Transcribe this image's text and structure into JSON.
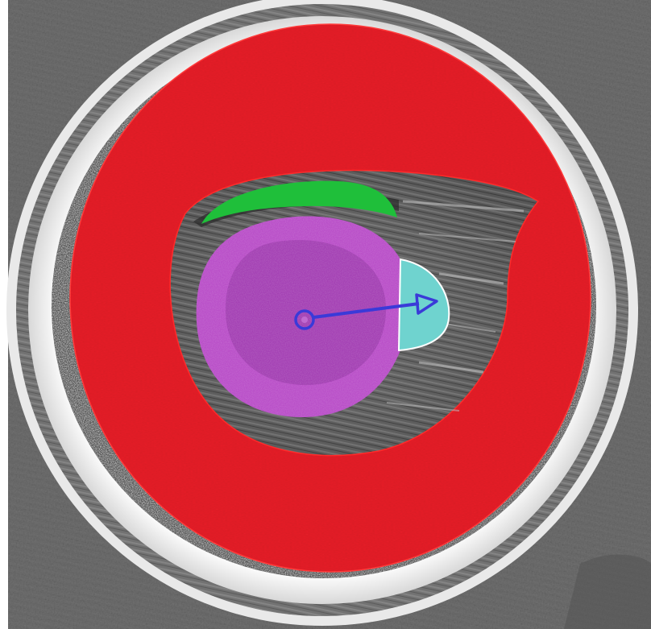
{
  "image": {
    "description_visible_text": "",
    "colors": {
      "background": "#ffffff",
      "surface_dark": "#5a5a5a",
      "surface_mid": "#9a9a9a",
      "white_ring": "#f4f4f4",
      "red_region": "#e8202a",
      "red_outline": "#ff2a2a",
      "green_region": "#1fbf3a",
      "magenta_region": "#b94fc8",
      "magenta_inner": "#9e3cae",
      "cyan_region": "#6fd3cf",
      "arrow": "#3a3ad8",
      "cavity": "#4a4a4a"
    },
    "regions": [
      {
        "name": "red-annulus-region",
        "label": ""
      },
      {
        "name": "green-crescent-region",
        "label": ""
      },
      {
        "name": "magenta-disc-region",
        "label": ""
      },
      {
        "name": "cyan-cap-region",
        "label": ""
      }
    ],
    "marker": {
      "type": "arrow-with-circle",
      "icon": "direction-arrow-icon"
    }
  }
}
